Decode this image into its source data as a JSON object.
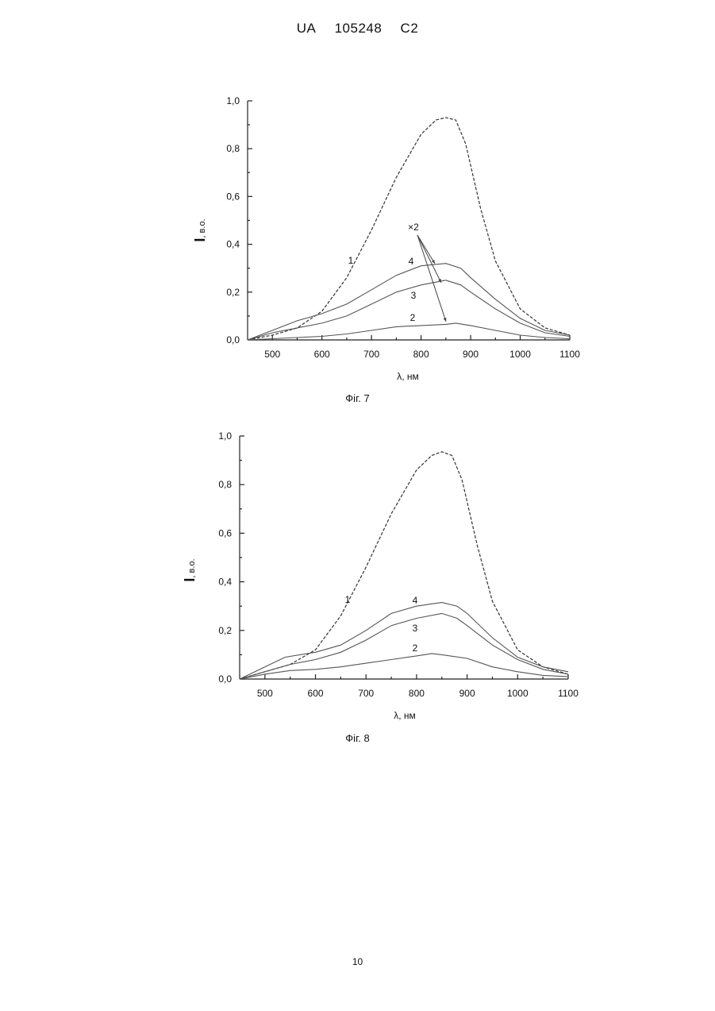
{
  "header": {
    "country": "UA",
    "number": "105248",
    "kind": "C2"
  },
  "page_number": "10",
  "chart_data": [
    {
      "type": "line",
      "caption": "Фіг. 7",
      "xlabel": "λ, нм",
      "ylabel_main": "I",
      "ylabel_unit": ", в.о.",
      "xlim": [
        450,
        1100
      ],
      "ylim": [
        0,
        1.0
      ],
      "xticks": [
        "500",
        "600",
        "700",
        "800",
        "900",
        "1000",
        "1100"
      ],
      "yticks": [
        "0,0",
        "0,2",
        "0,4",
        "0,6",
        "0,8",
        "1,0"
      ],
      "annotation": "×2",
      "series": [
        {
          "name": "1",
          "style": "dashed",
          "x": [
            450,
            500,
            550,
            600,
            650,
            700,
            750,
            800,
            830,
            850,
            870,
            890,
            920,
            950,
            1000,
            1050,
            1100
          ],
          "y": [
            0.0,
            0.02,
            0.05,
            0.12,
            0.26,
            0.46,
            0.68,
            0.86,
            0.92,
            0.93,
            0.92,
            0.82,
            0.55,
            0.33,
            0.13,
            0.05,
            0.02
          ]
        },
        {
          "name": "4",
          "style": "solid",
          "x": [
            450,
            500,
            550,
            600,
            650,
            700,
            750,
            800,
            850,
            880,
            900,
            950,
            1000,
            1050,
            1100
          ],
          "y": [
            0.0,
            0.04,
            0.08,
            0.11,
            0.15,
            0.21,
            0.27,
            0.31,
            0.32,
            0.3,
            0.26,
            0.17,
            0.09,
            0.04,
            0.02
          ]
        },
        {
          "name": "3",
          "style": "solid",
          "x": [
            450,
            500,
            550,
            600,
            650,
            700,
            750,
            800,
            850,
            880,
            900,
            950,
            1000,
            1050,
            1100
          ],
          "y": [
            0.0,
            0.03,
            0.05,
            0.07,
            0.1,
            0.15,
            0.2,
            0.23,
            0.25,
            0.23,
            0.2,
            0.13,
            0.07,
            0.03,
            0.015
          ]
        },
        {
          "name": "2",
          "style": "solid",
          "x": [
            450,
            500,
            550,
            600,
            650,
            700,
            750,
            800,
            850,
            870,
            900,
            950,
            1000,
            1050,
            1100
          ],
          "y": [
            0.0,
            0.005,
            0.01,
            0.015,
            0.025,
            0.04,
            0.055,
            0.06,
            0.065,
            0.07,
            0.06,
            0.04,
            0.02,
            0.01,
            0.005
          ]
        }
      ],
      "curve_labels": [
        "1",
        "4",
        "3",
        "2"
      ]
    },
    {
      "type": "line",
      "caption": "Фіг. 8",
      "xlabel": "λ, нм",
      "ylabel_main": "I",
      "ylabel_unit": ", в.о.",
      "xlim": [
        450,
        1100
      ],
      "ylim": [
        0,
        1.0
      ],
      "xticks": [
        "500",
        "600",
        "700",
        "800",
        "900",
        "1000",
        "1100"
      ],
      "yticks": [
        "0,0",
        "0,2",
        "0,4",
        "0,6",
        "0,8",
        "1,0"
      ],
      "series": [
        {
          "name": "1",
          "style": "dashed",
          "x": [
            450,
            500,
            550,
            600,
            650,
            700,
            750,
            800,
            830,
            850,
            870,
            890,
            920,
            950,
            1000,
            1050,
            1100
          ],
          "y": [
            0.0,
            0.03,
            0.06,
            0.12,
            0.26,
            0.46,
            0.68,
            0.86,
            0.92,
            0.935,
            0.92,
            0.82,
            0.55,
            0.32,
            0.12,
            0.05,
            0.02
          ]
        },
        {
          "name": "4",
          "style": "solid",
          "x": [
            450,
            500,
            540,
            600,
            650,
            700,
            750,
            800,
            850,
            880,
            900,
            950,
            1000,
            1050,
            1100
          ],
          "y": [
            0.0,
            0.05,
            0.09,
            0.11,
            0.14,
            0.2,
            0.27,
            0.3,
            0.315,
            0.3,
            0.27,
            0.17,
            0.09,
            0.05,
            0.03
          ]
        },
        {
          "name": "3",
          "style": "solid",
          "x": [
            450,
            500,
            550,
            600,
            650,
            700,
            750,
            800,
            850,
            880,
            900,
            950,
            1000,
            1050,
            1100
          ],
          "y": [
            0.0,
            0.03,
            0.06,
            0.08,
            0.11,
            0.16,
            0.22,
            0.25,
            0.27,
            0.25,
            0.22,
            0.14,
            0.08,
            0.04,
            0.02
          ]
        },
        {
          "name": "2",
          "style": "solid",
          "x": [
            450,
            500,
            550,
            600,
            650,
            700,
            750,
            800,
            830,
            850,
            900,
            950,
            1000,
            1050,
            1100
          ],
          "y": [
            0.0,
            0.02,
            0.035,
            0.04,
            0.05,
            0.065,
            0.08,
            0.095,
            0.105,
            0.1,
            0.085,
            0.05,
            0.03,
            0.015,
            0.01
          ]
        }
      ],
      "curve_labels": [
        "1",
        "4",
        "3",
        "2"
      ]
    }
  ]
}
